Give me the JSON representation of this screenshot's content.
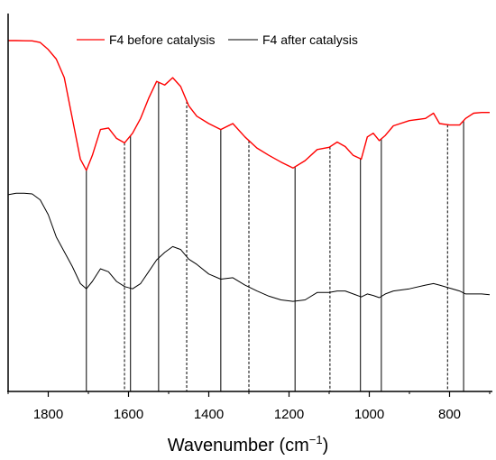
{
  "chart_data": {
    "type": "line",
    "xlabel": "Wavenumber (cm",
    "xlabel_sup": "−1",
    "xlabel_close": ")",
    "xlim": [
      1900,
      700
    ],
    "x_reversed": true,
    "xticks": [
      1800,
      1600,
      1400,
      1200,
      1000,
      800
    ],
    "xtick_labels": [
      "1800",
      "1600",
      "1400",
      "1200",
      "1000",
      "800"
    ],
    "y_axis_shown": false,
    "grid": false,
    "legend_position": "top",
    "series": [
      {
        "name": "F4 before catalysis",
        "color": "#ff0000",
        "x": [
          1900,
          1880,
          1860,
          1840,
          1820,
          1800,
          1780,
          1760,
          1740,
          1720,
          1705,
          1690,
          1670,
          1650,
          1630,
          1610,
          1590,
          1570,
          1550,
          1530,
          1510,
          1490,
          1470,
          1450,
          1430,
          1400,
          1370,
          1340,
          1310,
          1280,
          1250,
          1220,
          1190,
          1160,
          1130,
          1100,
          1080,
          1060,
          1040,
          1020,
          1005,
          990,
          975,
          960,
          940,
          900,
          860,
          840,
          825,
          800,
          775,
          760,
          740,
          720,
          700
        ],
        "y": [
          0.0,
          0.0,
          -0.002,
          -0.004,
          -0.025,
          -0.12,
          -0.25,
          -0.5,
          -1.05,
          -1.6,
          -1.75,
          -1.55,
          -1.2,
          -1.18,
          -1.32,
          -1.38,
          -1.25,
          -1.05,
          -0.78,
          -0.55,
          -0.6,
          -0.5,
          -0.62,
          -0.88,
          -1.02,
          -1.12,
          -1.2,
          -1.12,
          -1.3,
          -1.45,
          -1.55,
          -1.64,
          -1.72,
          -1.62,
          -1.47,
          -1.44,
          -1.37,
          -1.43,
          -1.55,
          -1.6,
          -1.3,
          -1.25,
          -1.35,
          -1.28,
          -1.15,
          -1.08,
          -1.05,
          -0.98,
          -1.12,
          -1.14,
          -1.14,
          -1.05,
          -0.98,
          -0.97,
          -0.97
        ]
      },
      {
        "name": "F4 after catalysis",
        "color": "#000000",
        "x": [
          1900,
          1880,
          1860,
          1840,
          1820,
          1800,
          1780,
          1760,
          1740,
          1720,
          1705,
          1690,
          1670,
          1650,
          1630,
          1610,
          1590,
          1570,
          1550,
          1530,
          1510,
          1490,
          1470,
          1450,
          1430,
          1400,
          1370,
          1340,
          1310,
          1280,
          1250,
          1220,
          1190,
          1160,
          1130,
          1100,
          1080,
          1060,
          1040,
          1020,
          1005,
          990,
          975,
          960,
          940,
          900,
          860,
          840,
          825,
          800,
          775,
          760,
          740,
          720,
          700
        ],
        "y": [
          -2.08,
          -2.06,
          -2.06,
          -2.07,
          -2.15,
          -2.35,
          -2.65,
          -2.85,
          -3.05,
          -3.28,
          -3.35,
          -3.25,
          -3.08,
          -3.12,
          -3.25,
          -3.32,
          -3.35,
          -3.28,
          -3.12,
          -2.96,
          -2.86,
          -2.78,
          -2.82,
          -2.95,
          -3.02,
          -3.15,
          -3.22,
          -3.2,
          -3.3,
          -3.38,
          -3.45,
          -3.5,
          -3.52,
          -3.5,
          -3.4,
          -3.4,
          -3.38,
          -3.38,
          -3.42,
          -3.46,
          -3.42,
          -3.44,
          -3.47,
          -3.42,
          -3.38,
          -3.35,
          -3.3,
          -3.28,
          -3.3,
          -3.34,
          -3.38,
          -3.42,
          -3.42,
          -3.42,
          -3.43
        ]
      }
    ],
    "reference_lines": [
      {
        "x": 1705,
        "style": "solid"
      },
      {
        "x": 1610,
        "style": "dashed"
      },
      {
        "x": 1595,
        "style": "solid"
      },
      {
        "x": 1525,
        "style": "solid"
      },
      {
        "x": 1455,
        "style": "dashed"
      },
      {
        "x": 1370,
        "style": "solid"
      },
      {
        "x": 1300,
        "style": "dashed"
      },
      {
        "x": 1185,
        "style": "solid"
      },
      {
        "x": 1098,
        "style": "dashed"
      },
      {
        "x": 1022,
        "style": "solid"
      },
      {
        "x": 970,
        "style": "solid"
      },
      {
        "x": 805,
        "style": "dashed"
      },
      {
        "x": 765,
        "style": "solid"
      }
    ]
  }
}
